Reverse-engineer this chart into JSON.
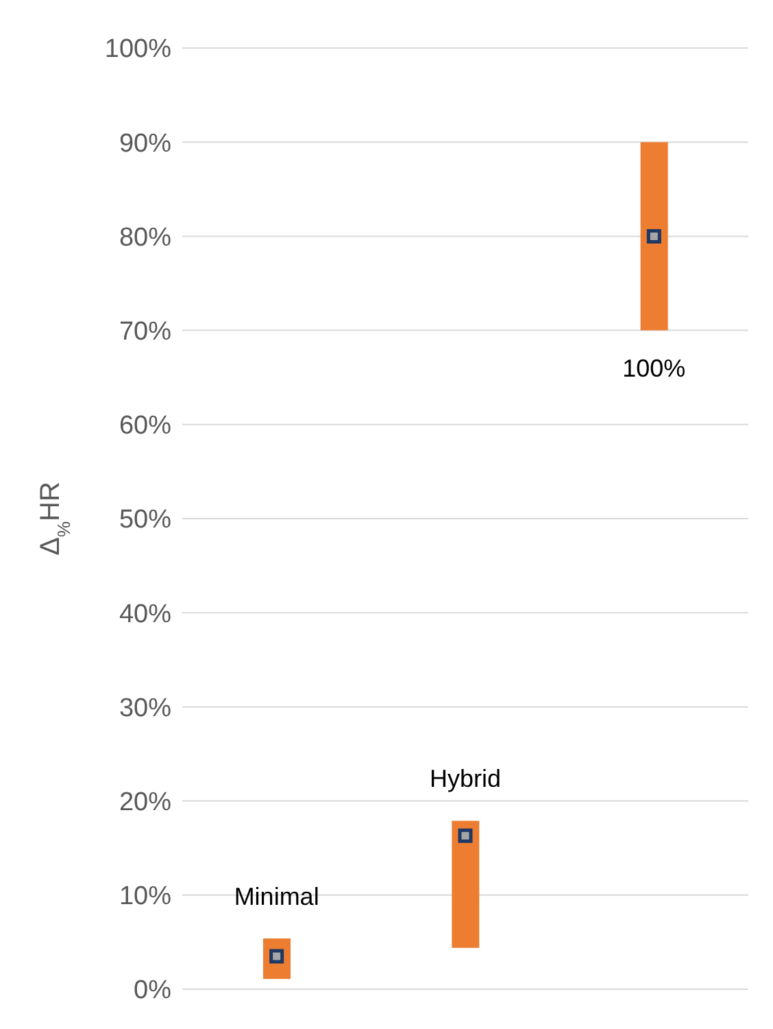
{
  "chart_data": {
    "type": "bar",
    "ylabel": "Δ$_{%}$HR",
    "categories": [
      null,
      null,
      null
    ],
    "series": [
      {
        "type": "bar",
        "color": "#ed7d31",
        "base": [
          1.1,
          4.4,
          70
        ],
        "values": [
          4.3,
          13.5,
          20
        ]
      },
      {
        "type": "scatter",
        "color": "#a6a6a6",
        "marker": "square",
        "values": [
          3.5,
          16.3,
          80
        ]
      }
    ],
    "ylim": [
      0,
      100
    ],
    "yticks": [
      {
        "value": 0,
        "label": "0%"
      },
      {
        "value": 10,
        "label": "10%"
      },
      {
        "value": 20,
        "label": "20%"
      },
      {
        "value": 30,
        "label": "30%"
      },
      {
        "value": 40,
        "label": "40%"
      },
      {
        "value": 50,
        "label": "50%"
      },
      {
        "value": 60,
        "label": "60%"
      },
      {
        "value": 70,
        "label": "70%"
      },
      {
        "value": 80,
        "label": "80%"
      },
      {
        "value": 90,
        "label": "90%"
      },
      {
        "value": 100,
        "label": "100%"
      }
    ],
    "grid": "y",
    "legend": false,
    "annotations": [
      "Minimal",
      "Hybrid",
      "100%"
    ]
  }
}
